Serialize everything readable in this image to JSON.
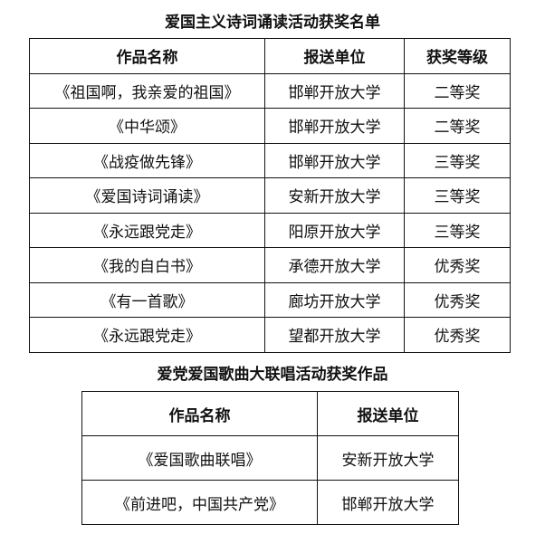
{
  "table1": {
    "title": "爱国主义诗词诵读活动获奖名单",
    "headers": [
      "作品名称",
      "报送单位",
      "获奖等级"
    ],
    "rows": [
      [
        "《祖国啊，我亲爱的祖国》",
        "邯郸开放大学",
        "二等奖"
      ],
      [
        "《中华颂》",
        "邯郸开放大学",
        "二等奖"
      ],
      [
        "《战疫做先锋》",
        "邯郸开放大学",
        "三等奖"
      ],
      [
        "《爱国诗词诵读》",
        "安新开放大学",
        "三等奖"
      ],
      [
        "《永远跟党走》",
        "阳原开放大学",
        "三等奖"
      ],
      [
        "《我的自白书》",
        "承德开放大学",
        "优秀奖"
      ],
      [
        "《有一首歌》",
        "廊坊开放大学",
        "优秀奖"
      ],
      [
        "《永远跟党走》",
        "望都开放大学",
        "优秀奖"
      ]
    ]
  },
  "table2": {
    "title": "爱党爱国歌曲大联唱活动获奖作品",
    "headers": [
      "作品名称",
      "报送单位"
    ],
    "rows": [
      [
        "《爱国歌曲联唱》",
        "安新开放大学"
      ],
      [
        "《前进吧，中国共产党》",
        "邯郸开放大学"
      ]
    ]
  }
}
